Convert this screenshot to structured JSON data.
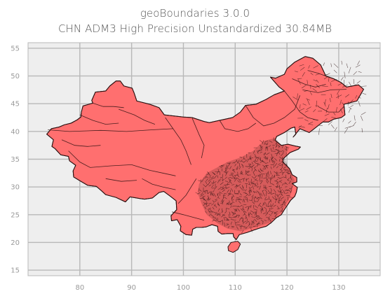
{
  "title": "geoBoundaries 3.0.0",
  "subtitle": "CHN ADM3 High Precision Unstandardized 30.84MB",
  "colors": {
    "plot_bg": "#eeeeee",
    "grid": "#b8b8b8",
    "fill": "#ff6f6f",
    "stroke": "#2a1010",
    "dense": "#5a1f1f"
  },
  "chart_data": {
    "type": "map",
    "xlim": [
      70,
      138
    ],
    "ylim": [
      14,
      56
    ],
    "xticks": [
      80,
      90,
      100,
      110,
      120,
      130
    ],
    "yticks": [
      15,
      20,
      25,
      30,
      35,
      40,
      45,
      50,
      55
    ],
    "xtick_labels": [
      "80",
      "90",
      "100",
      "110",
      "120",
      "130"
    ],
    "ytick_labels": [
      "15",
      "20",
      "25",
      "30",
      "35",
      "40",
      "45",
      "50",
      "55"
    ],
    "grid": true,
    "outline": [
      [
        73.6,
        39.5
      ],
      [
        74.5,
        40.5
      ],
      [
        76.0,
        40.8
      ],
      [
        77.0,
        41.2
      ],
      [
        78.3,
        41.5
      ],
      [
        79.5,
        42.1
      ],
      [
        80.2,
        42.6
      ],
      [
        80.3,
        43.5
      ],
      [
        80.6,
        44.6
      ],
      [
        82.5,
        45.1
      ],
      [
        82.3,
        45.6
      ],
      [
        83.0,
        47.1
      ],
      [
        85.0,
        47.3
      ],
      [
        85.8,
        48.2
      ],
      [
        87.0,
        49.1
      ],
      [
        87.8,
        49.1
      ],
      [
        88.5,
        48.2
      ],
      [
        90.1,
        47.8
      ],
      [
        90.5,
        46.9
      ],
      [
        91.0,
        45.5
      ],
      [
        93.5,
        44.9
      ],
      [
        95.3,
        44.3
      ],
      [
        96.3,
        43.0
      ],
      [
        100.0,
        42.6
      ],
      [
        101.7,
        42.5
      ],
      [
        104.0,
        41.8
      ],
      [
        105.0,
        41.6
      ],
      [
        107.0,
        42.0
      ],
      [
        109.5,
        42.5
      ],
      [
        111.0,
        43.5
      ],
      [
        112.0,
        44.7
      ],
      [
        114.0,
        44.9
      ],
      [
        116.0,
        45.8
      ],
      [
        117.5,
        46.6
      ],
      [
        119.5,
        47.3
      ],
      [
        118.5,
        48.0
      ],
      [
        116.8,
        49.8
      ],
      [
        117.8,
        49.6
      ],
      [
        119.5,
        50.3
      ],
      [
        120.0,
        51.3
      ],
      [
        121.5,
        52.5
      ],
      [
        123.5,
        53.5
      ],
      [
        125.0,
        53.2
      ],
      [
        126.5,
        52.0
      ],
      [
        127.5,
        50.0
      ],
      [
        129.0,
        49.5
      ],
      [
        130.5,
        48.8
      ],
      [
        131.5,
        48.0
      ],
      [
        133.8,
        48.4
      ],
      [
        134.8,
        47.6
      ],
      [
        133.5,
        45.5
      ],
      [
        131.0,
        44.9
      ],
      [
        131.2,
        43.0
      ],
      [
        130.5,
        42.5
      ],
      [
        129.0,
        42.2
      ],
      [
        128.0,
        41.7
      ],
      [
        126.9,
        41.7
      ],
      [
        125.0,
        40.3
      ],
      [
        124.3,
        39.8
      ],
      [
        122.5,
        40.5
      ],
      [
        121.2,
        39.0
      ],
      [
        121.7,
        39.5
      ],
      [
        121.5,
        40.8
      ],
      [
        120.8,
        40.6
      ],
      [
        119.5,
        39.8
      ],
      [
        118.0,
        39.1
      ],
      [
        117.7,
        38.4
      ],
      [
        118.9,
        37.5
      ],
      [
        120.2,
        37.7
      ],
      [
        121.5,
        37.4
      ],
      [
        122.6,
        37.2
      ],
      [
        122.2,
        36.8
      ],
      [
        120.6,
        36.2
      ],
      [
        119.3,
        35.1
      ],
      [
        119.2,
        34.5
      ],
      [
        120.5,
        33.3
      ],
      [
        121.0,
        32.2
      ],
      [
        121.9,
        31.7
      ],
      [
        121.9,
        30.9
      ],
      [
        121.0,
        30.6
      ],
      [
        122.0,
        29.9
      ],
      [
        121.8,
        29.0
      ],
      [
        121.5,
        28.3
      ],
      [
        120.7,
        27.6
      ],
      [
        120.3,
        27.0
      ],
      [
        119.5,
        25.9
      ],
      [
        118.9,
        25.0
      ],
      [
        118.0,
        24.5
      ],
      [
        117.0,
        23.6
      ],
      [
        116.0,
        22.9
      ],
      [
        114.8,
        22.6
      ],
      [
        113.5,
        22.2
      ],
      [
        112.3,
        21.8
      ],
      [
        110.8,
        21.4
      ],
      [
        110.2,
        20.5
      ],
      [
        109.7,
        21.0
      ],
      [
        109.6,
        21.6
      ],
      [
        108.5,
        21.6
      ],
      [
        107.4,
        21.5
      ],
      [
        106.7,
        22.0
      ],
      [
        106.6,
        22.9
      ],
      [
        105.5,
        23.2
      ],
      [
        104.4,
        22.8
      ],
      [
        103.5,
        22.7
      ],
      [
        102.5,
        22.7
      ],
      [
        101.8,
        22.4
      ],
      [
        101.6,
        21.3
      ],
      [
        100.5,
        21.4
      ],
      [
        99.4,
        22.1
      ],
      [
        99.5,
        22.9
      ],
      [
        98.8,
        24.1
      ],
      [
        97.7,
        23.9
      ],
      [
        97.6,
        24.8
      ],
      [
        98.7,
        25.9
      ],
      [
        98.6,
        27.5
      ],
      [
        97.5,
        28.3
      ],
      [
        96.2,
        29.2
      ],
      [
        95.3,
        29.0
      ],
      [
        94.0,
        28.0
      ],
      [
        92.5,
        27.8
      ],
      [
        91.6,
        27.9
      ],
      [
        89.7,
        28.2
      ],
      [
        88.8,
        27.3
      ],
      [
        87.0,
        28.1
      ],
      [
        85.0,
        28.6
      ],
      [
        84.2,
        29.3
      ],
      [
        83.2,
        30.1
      ],
      [
        81.5,
        30.3
      ],
      [
        80.2,
        31.0
      ],
      [
        78.8,
        31.8
      ],
      [
        78.7,
        32.9
      ],
      [
        79.2,
        33.9
      ],
      [
        78.0,
        34.7
      ],
      [
        77.8,
        35.5
      ],
      [
        76.3,
        35.8
      ],
      [
        75.2,
        36.9
      ],
      [
        74.6,
        37.3
      ],
      [
        74.9,
        38.5
      ],
      [
        73.6,
        39.5
      ]
    ],
    "hainan": [
      [
        108.6,
        19.2
      ],
      [
        109.2,
        20.0
      ],
      [
        110.5,
        20.2
      ],
      [
        111.0,
        19.7
      ],
      [
        110.5,
        18.7
      ],
      [
        109.6,
        18.2
      ],
      [
        108.7,
        18.5
      ],
      [
        108.6,
        19.2
      ]
    ],
    "dense_region": [
      [
        103.0,
        30.5
      ],
      [
        104.5,
        32.5
      ],
      [
        106.5,
        33.5
      ],
      [
        108.5,
        34.5
      ],
      [
        111.0,
        35.3
      ],
      [
        113.5,
        36.5
      ],
      [
        115.5,
        38.3
      ],
      [
        117.7,
        38.8
      ],
      [
        119.0,
        37.5
      ],
      [
        120.5,
        37.2
      ],
      [
        119.5,
        35.3
      ],
      [
        120.5,
        33.0
      ],
      [
        121.5,
        31.2
      ],
      [
        120.5,
        28.0
      ],
      [
        119.0,
        25.5
      ],
      [
        116.5,
        23.5
      ],
      [
        113.5,
        22.6
      ],
      [
        111.0,
        22.0
      ],
      [
        108.5,
        22.5
      ],
      [
        106.5,
        23.5
      ],
      [
        104.5,
        25.0
      ],
      [
        103.5,
        27.0
      ],
      [
        102.8,
        28.8
      ],
      [
        103.0,
        30.5
      ]
    ],
    "boundaries": [
      [
        [
          73.8,
          40.3
        ],
        [
          78.0,
          40.0
        ],
        [
          84.0,
          40.2
        ],
        [
          89.0,
          40.0
        ],
        [
          94.0,
          40.3
        ],
        [
          98.0,
          40.5
        ]
      ],
      [
        [
          87.5,
          44.0
        ],
        [
          90.5,
          43.0
        ],
        [
          92.5,
          42.0
        ],
        [
          94.5,
          41.3
        ]
      ],
      [
        [
          77.8,
          36.5
        ],
        [
          80.0,
          34.5
        ],
        [
          82.0,
          33.5
        ],
        [
          86.0,
          33.8
        ],
        [
          90.0,
          34.0
        ]
      ],
      [
        [
          90.0,
          34.0
        ],
        [
          93.5,
          33.0
        ],
        [
          96.0,
          32.5
        ],
        [
          98.5,
          32.0
        ]
      ],
      [
        [
          96.5,
          42.5
        ],
        [
          98.0,
          40.5
        ],
        [
          99.5,
          38.5
        ],
        [
          100.5,
          36.5
        ],
        [
          101.5,
          34.0
        ]
      ],
      [
        [
          101.7,
          42.4
        ],
        [
          103.0,
          39.5
        ],
        [
          104.0,
          37.5
        ],
        [
          103.5,
          35.2
        ]
      ],
      [
        [
          107.0,
          42.0
        ],
        [
          108.0,
          40.5
        ],
        [
          110.5,
          40.0
        ],
        [
          112.5,
          40.5
        ],
        [
          114.0,
          41.5
        ]
      ],
      [
        [
          112.0,
          44.7
        ],
        [
          113.5,
          42.5
        ],
        [
          115.5,
          41.0
        ],
        [
          117.5,
          41.5
        ],
        [
          119.5,
          42.5
        ],
        [
          121.5,
          44.0
        ],
        [
          122.5,
          46.5
        ]
      ],
      [
        [
          119.5,
          47.3
        ],
        [
          121.0,
          45.5
        ],
        [
          122.5,
          43.5
        ],
        [
          124.0,
          42.5
        ],
        [
          126.0,
          42.0
        ]
      ],
      [
        [
          123.0,
          47.5
        ],
        [
          126.0,
          47.0
        ],
        [
          128.5,
          47.5
        ],
        [
          131.5,
          47.6
        ]
      ],
      [
        [
          121.0,
          49.5
        ],
        [
          123.5,
          48.5
        ],
        [
          125.5,
          48.0
        ],
        [
          127.5,
          48.5
        ]
      ],
      [
        [
          124.0,
          51.0
        ],
        [
          126.0,
          50.5
        ],
        [
          127.5,
          50.0
        ]
      ],
      [
        [
          126.0,
          44.5
        ],
        [
          128.0,
          43.5
        ],
        [
          130.0,
          43.5
        ],
        [
          131.0,
          44.5
        ]
      ],
      [
        [
          80.0,
          43.0
        ],
        [
          82.5,
          42.0
        ],
        [
          85.0,
          41.3
        ],
        [
          87.5,
          41.5
        ]
      ],
      [
        [
          76.5,
          38.5
        ],
        [
          79.0,
          37.5
        ],
        [
          81.5,
          37.3
        ],
        [
          84.0,
          37.5
        ]
      ],
      [
        [
          82.5,
          45.1
        ],
        [
          84.5,
          44.5
        ],
        [
          86.5,
          44.5
        ],
        [
          88.5,
          44.3
        ]
      ],
      [
        [
          92.0,
          31.5
        ],
        [
          94.0,
          30.5
        ],
        [
          96.0,
          30.0
        ],
        [
          98.5,
          29.5
        ]
      ],
      [
        [
          85.0,
          31.5
        ],
        [
          88.0,
          31.0
        ],
        [
          91.0,
          31.2
        ]
      ],
      [
        [
          99.0,
          27.0
        ],
        [
          100.5,
          28.5
        ],
        [
          101.5,
          30.0
        ],
        [
          102.5,
          31.5
        ]
      ],
      [
        [
          97.8,
          25.5
        ],
        [
          100.0,
          25.0
        ],
        [
          102.0,
          24.5
        ],
        [
          104.0,
          24.0
        ]
      ]
    ]
  }
}
